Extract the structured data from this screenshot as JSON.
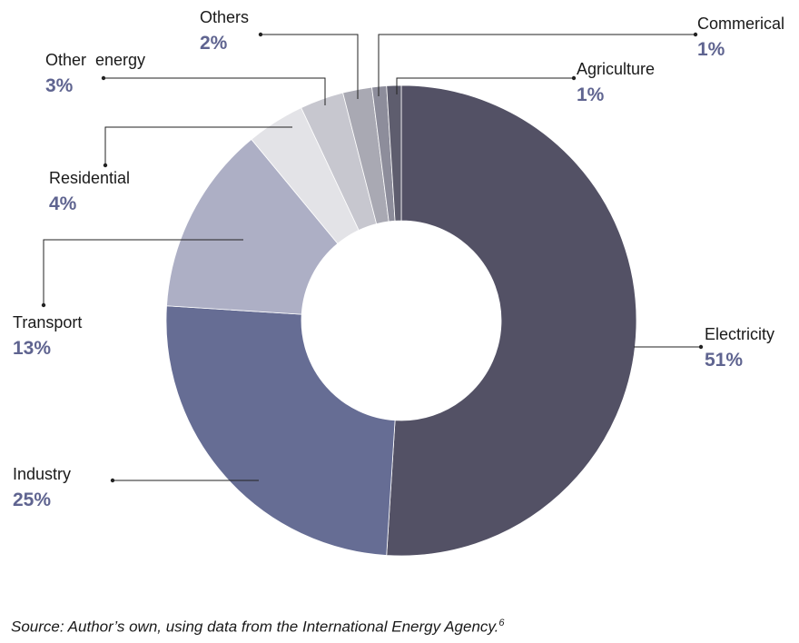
{
  "chart_data": {
    "type": "pie",
    "variant": "donut",
    "slices": [
      {
        "label": "Electricity",
        "value": 51,
        "display": "51%",
        "color": "#535165"
      },
      {
        "label": "Industry",
        "value": 25,
        "display": "25%",
        "color": "#666d94"
      },
      {
        "label": "Transport",
        "value": 13,
        "display": "13%",
        "color": "#adafc5"
      },
      {
        "label": "Residential",
        "value": 4,
        "display": "4%",
        "color": "#e3e3e7"
      },
      {
        "label": "Other  energy",
        "value": 3,
        "display": "3%",
        "color": "#c7c7cf"
      },
      {
        "label": "Others",
        "value": 2,
        "display": "2%",
        "color": "#a9a9b3"
      },
      {
        "label": "Commerical",
        "value": 1,
        "display": "1%",
        "color": "#8d8d9b"
      },
      {
        "label": "Agriculture",
        "value": 1,
        "display": "1%",
        "color": "#5e5d6e"
      }
    ],
    "start": "12 o'clock",
    "direction": "clockwise"
  },
  "source": {
    "text": "Source: Author’s own, using data from the International Energy Agency.",
    "footnote": "6"
  }
}
